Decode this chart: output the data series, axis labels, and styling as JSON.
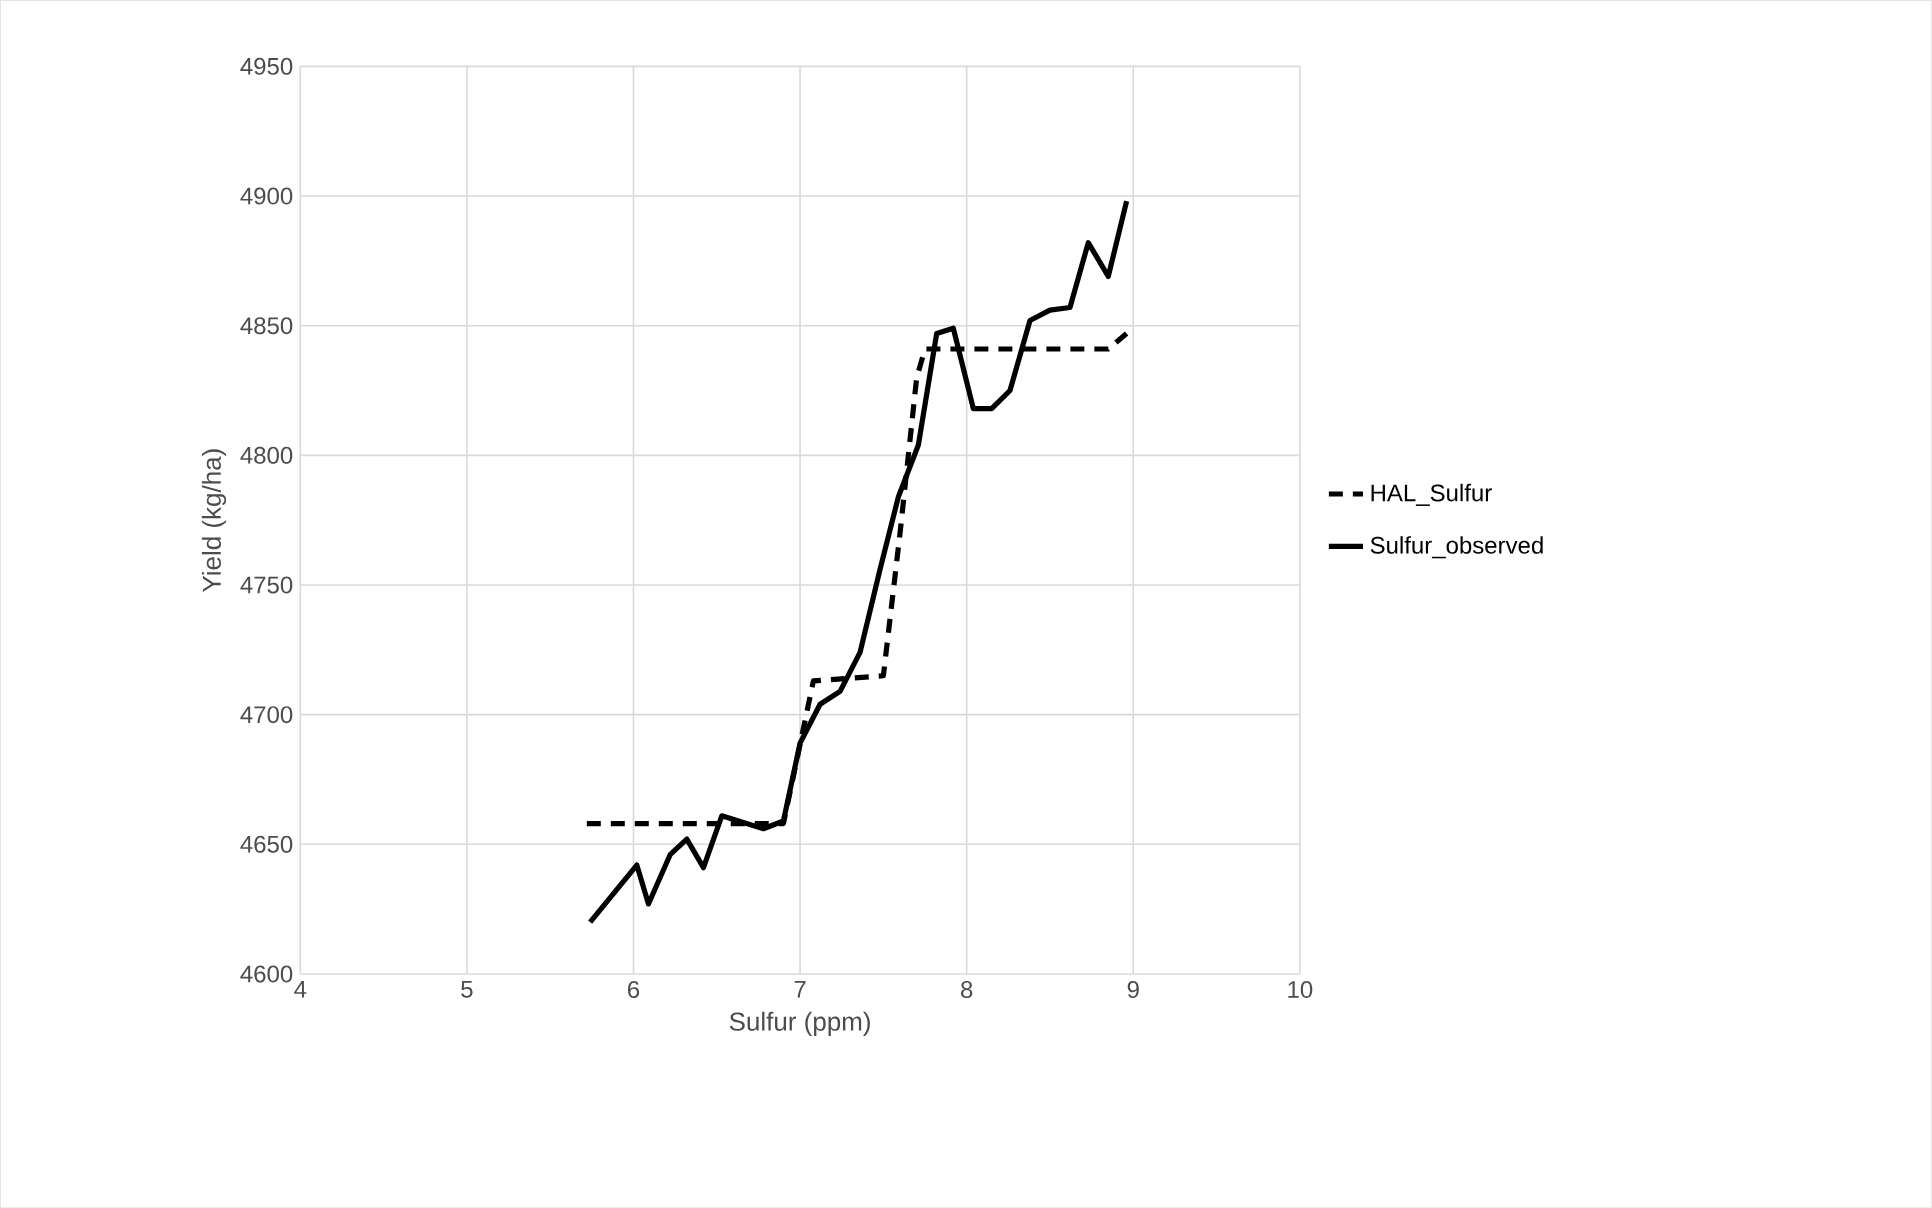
{
  "chart_data": {
    "type": "line",
    "xlabel": "Sulfur (ppm)",
    "ylabel": "Yield (kg/ha)",
    "xlim": [
      4,
      10
    ],
    "ylim": [
      4600,
      4950
    ],
    "xticks": [
      4,
      5,
      6,
      7,
      8,
      9,
      10
    ],
    "yticks": [
      4600,
      4650,
      4700,
      4750,
      4800,
      4850,
      4900,
      4950
    ],
    "grid": true,
    "legend": "right",
    "marker": "none",
    "series": [
      {
        "name": "HAL_Sulfur",
        "color": "#000000",
        "line_style": "dashed",
        "x": [
          5.72,
          6.9,
          7.08,
          7.5,
          7.6,
          7.7,
          7.75,
          8.85,
          8.96
        ],
        "values": [
          4658,
          4658,
          4713,
          4715,
          4770,
          4830,
          4841,
          4841,
          4847
        ]
      },
      {
        "name": "Sulfur_observed",
        "color": "#000000",
        "line_style": "solid",
        "x": [
          5.74,
          6.02,
          6.09,
          6.22,
          6.32,
          6.42,
          6.53,
          6.78,
          6.9,
          7.0,
          7.12,
          7.24,
          7.36,
          7.48,
          7.59,
          7.71,
          7.82,
          7.92,
          8.04,
          8.15,
          8.26,
          8.38,
          8.5,
          8.62,
          8.73,
          8.85,
          8.96
        ],
        "values": [
          4620,
          4642,
          4627,
          4646,
          4652,
          4641,
          4661,
          4656,
          4659,
          4689,
          4704,
          4709,
          4724,
          4756,
          4784,
          4804,
          4847,
          4849,
          4818,
          4818,
          4825,
          4852,
          4856,
          4857,
          4882,
          4869,
          4898
        ]
      }
    ]
  }
}
